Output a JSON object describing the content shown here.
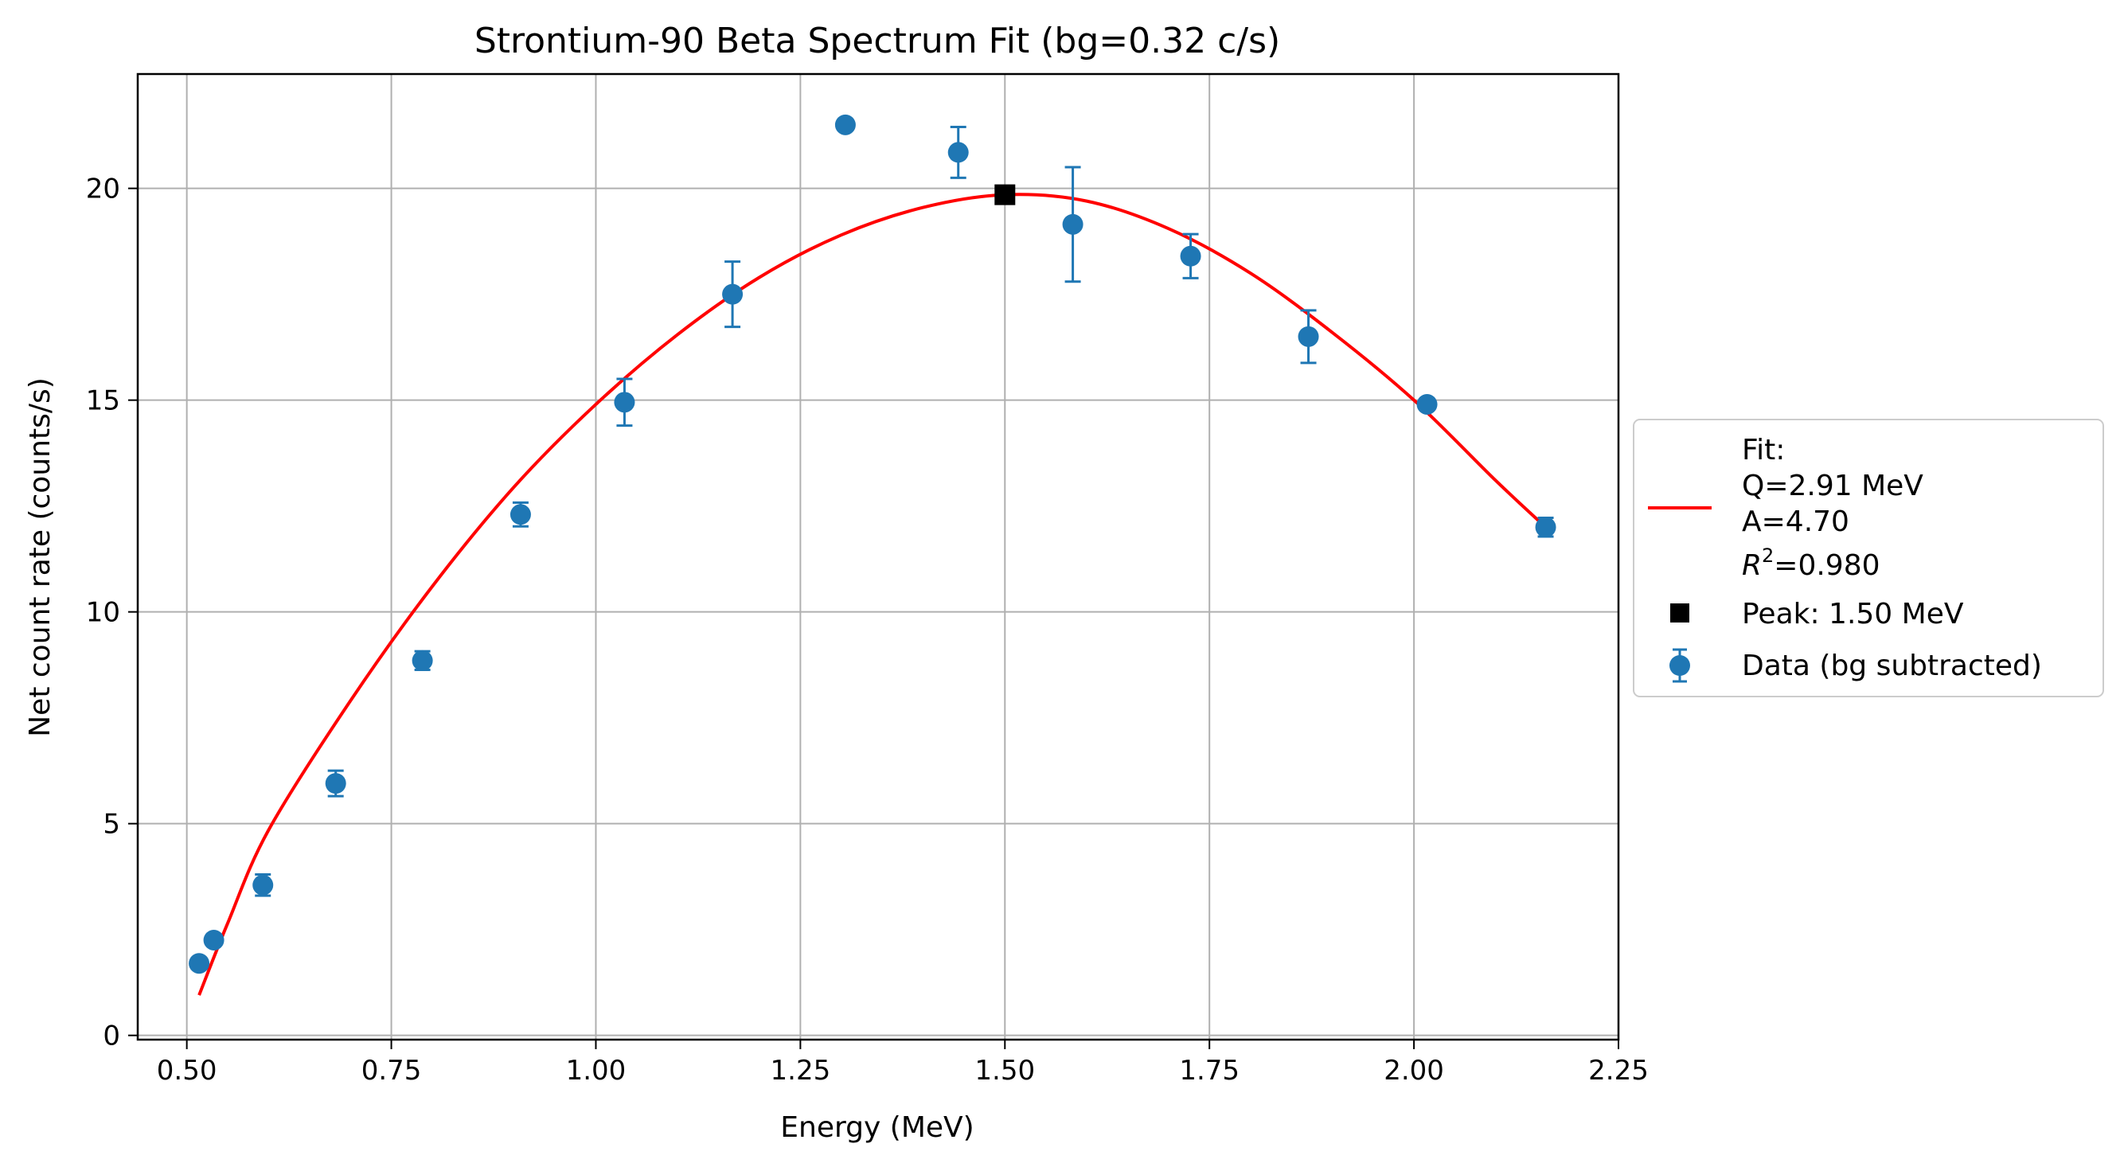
{
  "chart_data": {
    "type": "scatter",
    "title": "Strontium-90 Beta Spectrum Fit (bg=0.32 c/s)",
    "xlabel": "Energy (MeV)",
    "ylabel": "Net count rate (counts/s)",
    "xlim": [
      0.44,
      2.25
    ],
    "ylim": [
      -0.1,
      22.7
    ],
    "xticks": [
      0.5,
      0.75,
      1.0,
      1.25,
      1.5,
      1.75,
      2.0,
      2.25
    ],
    "xtick_labels": [
      "0.50",
      "0.75",
      "1.00",
      "1.25",
      "1.50",
      "1.75",
      "2.00",
      "2.25"
    ],
    "yticks": [
      0,
      5,
      10,
      15,
      20
    ],
    "ytick_labels": [
      "0",
      "5",
      "10",
      "15",
      "20"
    ],
    "grid": true,
    "legend_position": "outside-right",
    "legend": {
      "fit_lines": [
        "Fit:",
        "Q=2.91 MeV",
        "A=4.70"
      ],
      "r2_prefix": "R",
      "r2_sup": "2",
      "r2_value": "=0.980",
      "peak_label": "Peak: 1.50 MeV",
      "data_label": "Data (bg subtracted)"
    },
    "data": {
      "x": [
        0.515,
        0.533,
        0.593,
        0.682,
        0.788,
        0.908,
        1.035,
        1.167,
        1.305,
        1.443,
        1.583,
        1.727,
        1.871,
        2.016,
        2.161
      ],
      "y": [
        1.7,
        2.25,
        3.55,
        5.95,
        8.85,
        12.3,
        14.95,
        17.5,
        21.5,
        20.85,
        19.15,
        18.4,
        16.5,
        14.9,
        12.0
      ],
      "yerr": [
        0.1,
        0.12,
        0.25,
        0.3,
        0.22,
        0.28,
        0.55,
        0.77,
        0.12,
        0.6,
        1.35,
        0.52,
        0.62,
        0.12,
        0.22
      ],
      "color": "#1f77b4"
    },
    "fit": {
      "color": "#ff0000",
      "x": [
        0.515,
        0.55,
        0.6,
        0.7,
        0.8,
        0.9,
        1.0,
        1.1,
        1.2,
        1.3,
        1.4,
        1.5,
        1.6,
        1.7,
        1.8,
        1.9,
        2.0,
        2.1,
        2.161
      ],
      "y": [
        0.95,
        2.65,
        4.85,
        7.9,
        10.6,
        12.95,
        14.9,
        16.55,
        17.9,
        18.9,
        19.55,
        19.85,
        19.7,
        19.05,
        18.0,
        16.6,
        15.0,
        13.1,
        12.0
      ]
    },
    "peak": {
      "x": 1.5,
      "y": 19.85,
      "color": "#000000"
    }
  }
}
